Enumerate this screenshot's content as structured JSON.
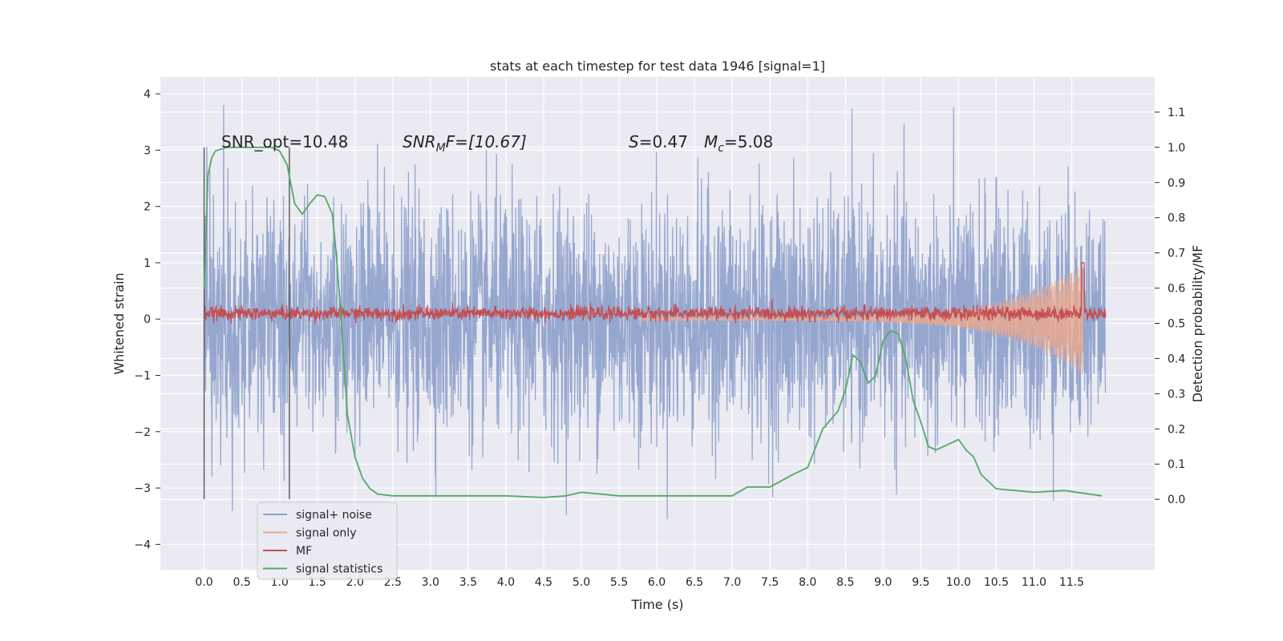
{
  "chart_data": {
    "type": "line",
    "title": "stats at each timestep for test data 1946 [signal=1]",
    "xlabel": "Time (s)",
    "ylabel": "Whitened strain",
    "ylabel_right": "Detection probability/MF",
    "xlim": [
      -0.58,
      12.6
    ],
    "ylim": [
      -4.45,
      4.3
    ],
    "ylim_right": [
      -0.2,
      1.2
    ],
    "x_ticks": [
      "0.0",
      "0.5",
      "1.0",
      "1.5",
      "2.0",
      "2.5",
      "3.0",
      "3.5",
      "4.0",
      "4.5",
      "5.0",
      "5.5",
      "6.0",
      "6.5",
      "7.0",
      "7.5",
      "8.0",
      "8.5",
      "9.0",
      "9.5",
      "10.0",
      "10.5",
      "11.0",
      "11.5"
    ],
    "y_ticks": [
      "−4",
      "−3",
      "−2",
      "−1",
      "0",
      "1",
      "2",
      "3",
      "4"
    ],
    "y_ticks_right": [
      "0.0",
      "0.1",
      "0.2",
      "0.3",
      "0.4",
      "0.5",
      "0.6",
      "0.7",
      "0.8",
      "0.9",
      "1.0",
      "1.1"
    ],
    "grid": true,
    "legend_position": "lower-left",
    "annotations": {
      "snr_opt": "SNR_opt=10.48",
      "snr_mf_sym": "SNR",
      "snr_mf_sub": "M",
      "snr_mf_rest": "F=[10.67]",
      "s_sym": "S",
      "s_rest": "=0.47",
      "mc_sym": "M",
      "mc_sub": "c",
      "mc_rest": "=5.08"
    },
    "vertical_markers": [
      0.0,
      1.13
    ],
    "series": [
      {
        "name": "signal+ noise",
        "color": "#8da0cb",
        "x_range": [
          0.0,
          11.95
        ],
        "amplitude_approx": 3.0
      },
      {
        "name": "signal only",
        "color": "#e8a88f",
        "x_range": [
          5.8,
          11.65
        ],
        "peak": 1.0
      },
      {
        "name": "MF",
        "color": "#c44e52",
        "x_range": [
          0.0,
          11.95
        ],
        "baseline": 0.1,
        "peak": 1.0,
        "peak_x": 11.65
      },
      {
        "name": "signal statistics",
        "color": "#55a868",
        "axis": "right",
        "x": [
          0.0,
          0.05,
          0.1,
          0.15,
          0.3,
          0.5,
          0.75,
          0.9,
          1.0,
          1.1,
          1.2,
          1.3,
          1.4,
          1.5,
          1.6,
          1.7,
          1.75,
          1.8,
          1.85,
          1.9,
          2.0,
          2.1,
          2.2,
          2.3,
          2.5,
          3.0,
          3.5,
          4.0,
          4.5,
          4.8,
          5.0,
          5.5,
          6.0,
          6.5,
          7.0,
          7.2,
          7.5,
          7.8,
          8.0,
          8.2,
          8.4,
          8.5,
          8.6,
          8.7,
          8.8,
          8.9,
          9.0,
          9.1,
          9.2,
          9.3,
          9.4,
          9.5,
          9.6,
          9.7,
          9.8,
          9.9,
          10.0,
          10.1,
          10.2,
          10.3,
          10.5,
          11.0,
          11.4,
          11.9
        ],
        "y": [
          0.6,
          0.92,
          0.97,
          0.99,
          1.0,
          1.0,
          1.0,
          1.0,
          0.99,
          0.95,
          0.84,
          0.81,
          0.84,
          0.865,
          0.86,
          0.81,
          0.7,
          0.56,
          0.4,
          0.24,
          0.12,
          0.06,
          0.03,
          0.015,
          0.01,
          0.01,
          0.01,
          0.01,
          0.005,
          0.01,
          0.02,
          0.01,
          0.01,
          0.01,
          0.01,
          0.035,
          0.035,
          0.07,
          0.09,
          0.2,
          0.25,
          0.31,
          0.41,
          0.39,
          0.33,
          0.35,
          0.45,
          0.48,
          0.47,
          0.4,
          0.28,
          0.22,
          0.15,
          0.14,
          0.15,
          0.16,
          0.17,
          0.14,
          0.12,
          0.07,
          0.03,
          0.02,
          0.025,
          0.01
        ]
      }
    ]
  }
}
